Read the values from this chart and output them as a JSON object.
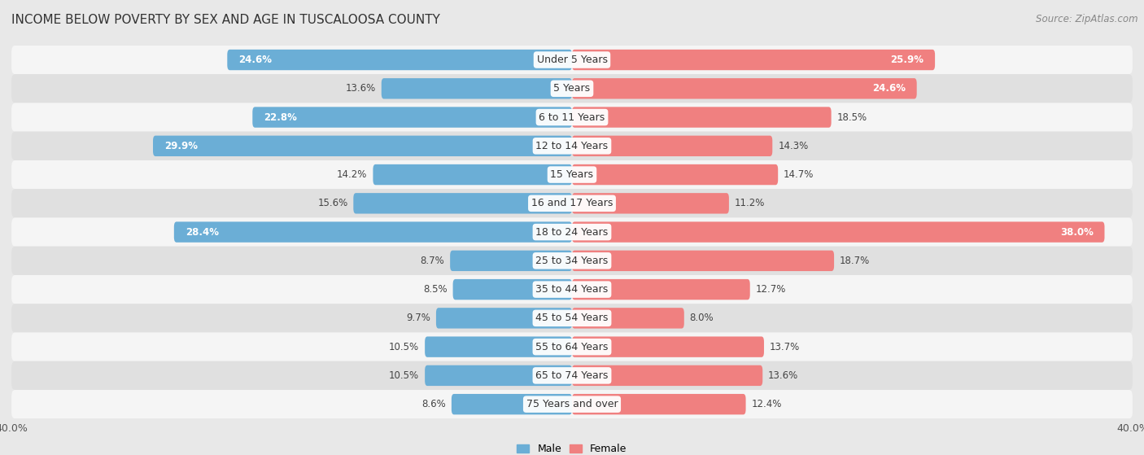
{
  "title": "INCOME BELOW POVERTY BY SEX AND AGE IN TUSCALOOSA COUNTY",
  "source": "Source: ZipAtlas.com",
  "categories": [
    "Under 5 Years",
    "5 Years",
    "6 to 11 Years",
    "12 to 14 Years",
    "15 Years",
    "16 and 17 Years",
    "18 to 24 Years",
    "25 to 34 Years",
    "35 to 44 Years",
    "45 to 54 Years",
    "55 to 64 Years",
    "65 to 74 Years",
    "75 Years and over"
  ],
  "male": [
    24.6,
    13.6,
    22.8,
    29.9,
    14.2,
    15.6,
    28.4,
    8.7,
    8.5,
    9.7,
    10.5,
    10.5,
    8.6
  ],
  "female": [
    25.9,
    24.6,
    18.5,
    14.3,
    14.7,
    11.2,
    38.0,
    18.7,
    12.7,
    8.0,
    13.7,
    13.6,
    12.4
  ],
  "male_color": "#6baed6",
  "female_color": "#f08080",
  "male_label": "Male",
  "female_label": "Female",
  "xlim": 40.0,
  "bg_color": "#e8e8e8",
  "row_color_odd": "#f5f5f5",
  "row_color_even": "#e0e0e0",
  "title_fontsize": 11,
  "source_fontsize": 8.5,
  "label_fontsize": 9,
  "value_fontsize": 8.5,
  "tick_fontsize": 9
}
